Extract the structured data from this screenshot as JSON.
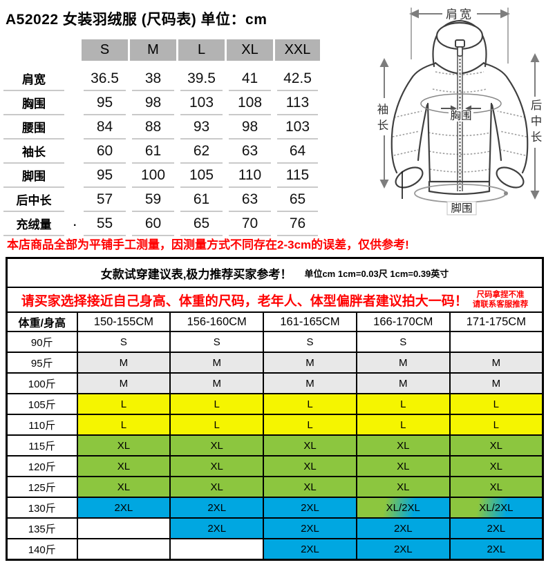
{
  "title": "A52022  女装羽绒服 (尺码表) 单位：cm",
  "size_table": {
    "header": [
      "",
      "S",
      "M",
      "L",
      "XL",
      "XXL"
    ],
    "rows": [
      {
        "label": "肩宽",
        "values": [
          "36.5",
          "38",
          "39.5",
          "41",
          "42.5"
        ]
      },
      {
        "label": "胸围",
        "values": [
          "95",
          "98",
          "103",
          "108",
          "113"
        ]
      },
      {
        "label": "腰围",
        "values": [
          "84",
          "88",
          "93",
          "98",
          "103"
        ]
      },
      {
        "label": "袖长",
        "values": [
          "60",
          "61",
          "62",
          "63",
          "64"
        ]
      },
      {
        "label": "脚围",
        "values": [
          "95",
          "100",
          "105",
          "110",
          "115"
        ]
      },
      {
        "label": "后中长",
        "values": [
          "57",
          "59",
          "61",
          "63",
          "65"
        ]
      },
      {
        "label": "充绒量",
        "values": [
          "55",
          "60",
          "65",
          "70",
          "76"
        ]
      }
    ]
  },
  "stray_dot": ".",
  "diagram": {
    "shoulder_label": "肩宽",
    "sleeve_label": "袖长",
    "chest_label": "胸围",
    "back_length_label": "后中长",
    "hem_label": "脚围"
  },
  "disclaimer": "本店商品全部为平铺手工测量，因测量方式不同存在2-3cm的误差，仅供参考!",
  "fit_table": {
    "title": "女款试穿建议表,极力推荐买家参考！",
    "unit_note": "单位cm 1cm=0.03尺 1cm=0.39英寸",
    "notice": "请买家选择接近自己身高、体重的尺码，老年人、体型偏胖者建议拍大一码！",
    "notice_side_line1": "尺码拿捏不准",
    "notice_side_line2": "请联系客服推荐",
    "columns": [
      "体重/身高",
      "150-155CM",
      "156-160CM",
      "161-165CM",
      "166-170CM",
      "171-175CM"
    ],
    "rows": [
      {
        "label": "90斤",
        "cells": [
          "S",
          "S",
          "S",
          "S",
          ""
        ],
        "bgs": [
          "white",
          "white",
          "white",
          "white",
          "white"
        ]
      },
      {
        "label": "95斤",
        "cells": [
          "M",
          "M",
          "M",
          "M",
          "M"
        ],
        "bgs": [
          "gray",
          "gray",
          "gray",
          "gray",
          "gray"
        ]
      },
      {
        "label": "100斤",
        "cells": [
          "M",
          "M",
          "M",
          "M",
          "M"
        ],
        "bgs": [
          "gray",
          "gray",
          "gray",
          "gray",
          "gray"
        ]
      },
      {
        "label": "105斤",
        "cells": [
          "L",
          "L",
          "L",
          "L",
          "L"
        ],
        "bgs": [
          "yellow",
          "yellow",
          "yellow",
          "yellow",
          "yellow"
        ]
      },
      {
        "label": "110斤",
        "cells": [
          "L",
          "L",
          "L",
          "L",
          "L"
        ],
        "bgs": [
          "yellow",
          "yellow",
          "yellow",
          "yellow",
          "yellow"
        ]
      },
      {
        "label": "115斤",
        "cells": [
          "XL",
          "XL",
          "XL",
          "XL",
          "XL"
        ],
        "bgs": [
          "green",
          "green",
          "green",
          "green",
          "green"
        ]
      },
      {
        "label": "120斤",
        "cells": [
          "XL",
          "XL",
          "XL",
          "XL",
          "XL"
        ],
        "bgs": [
          "green",
          "green",
          "green",
          "green",
          "green"
        ]
      },
      {
        "label": "125斤",
        "cells": [
          "XL",
          "XL",
          "XL",
          "XL",
          "XL"
        ],
        "bgs": [
          "green",
          "green",
          "green",
          "green",
          "green"
        ]
      },
      {
        "label": "130斤",
        "cells": [
          "2XL",
          "2XL",
          "2XL",
          "XL/2XL",
          "XL/2XL"
        ],
        "bgs": [
          "blue",
          "blue",
          "blue",
          "mix",
          "mix"
        ]
      },
      {
        "label": "135斤",
        "cells": [
          "",
          "2XL",
          "2XL",
          "2XL",
          "2XL"
        ],
        "bgs": [
          "white",
          "blue",
          "blue",
          "blue",
          "blue"
        ]
      },
      {
        "label": "140斤",
        "cells": [
          "",
          "",
          "2XL",
          "2XL",
          "2XL"
        ],
        "bgs": [
          "white",
          "white",
          "blue",
          "blue",
          "blue"
        ]
      }
    ]
  },
  "colors": {
    "header_gray": "#b3b3b3",
    "row_gray": "#e8e8e8",
    "yellow": "#f5f500",
    "green": "#8cc63f",
    "blue": "#00a7e1",
    "red": "#ff0000"
  }
}
